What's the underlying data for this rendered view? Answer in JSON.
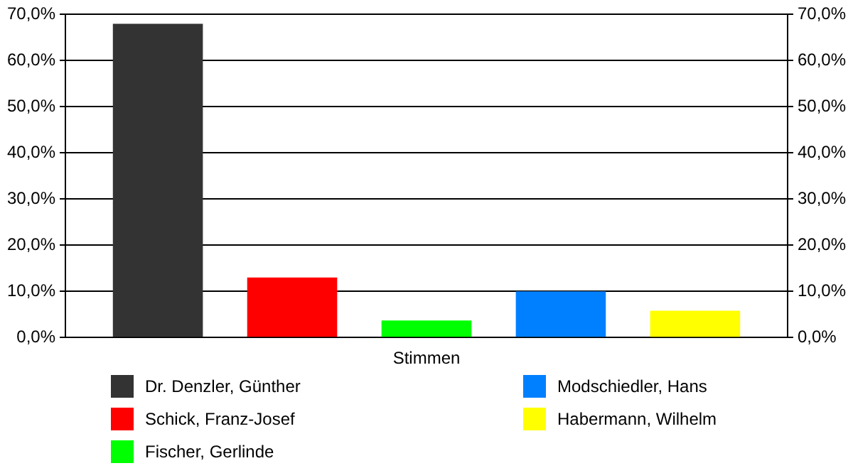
{
  "chart_data": {
    "type": "bar",
    "categories": [
      "Stimmen"
    ],
    "series": [
      {
        "name": "Dr. Denzler, Günther",
        "color": "#333333",
        "values": [
          68
        ]
      },
      {
        "name": "Schick, Franz-Josef",
        "color": "#ff0000",
        "values": [
          13
        ]
      },
      {
        "name": "Fischer, Gerlinde",
        "color": "#00ff00",
        "values": [
          3.7
        ]
      },
      {
        "name": "Modschiedler, Hans",
        "color": "#0080ff",
        "values": [
          10
        ]
      },
      {
        "name": "Habermann, Wilhelm",
        "color": "#ffff00",
        "values": [
          5.8
        ]
      }
    ],
    "ylim": [
      0,
      70
    ],
    "yticks": [
      {
        "value": 0,
        "label": "0,0%"
      },
      {
        "value": 10,
        "label": "10,0%"
      },
      {
        "value": 20,
        "label": "20,0%"
      },
      {
        "value": 30,
        "label": "30,0%"
      },
      {
        "value": 40,
        "label": "40,0%"
      },
      {
        "value": 50,
        "label": "50,0%"
      },
      {
        "value": 60,
        "label": "60,0%"
      },
      {
        "value": 70,
        "label": "70,0%"
      }
    ],
    "grid": "y",
    "legend": "bottom"
  }
}
